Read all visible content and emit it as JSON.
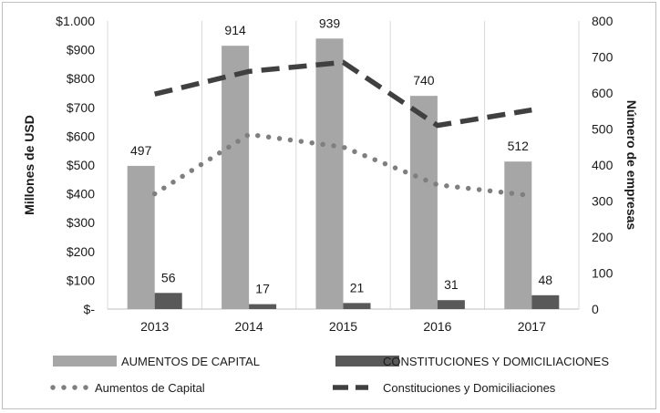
{
  "chart_data": {
    "type": "bar",
    "categories": [
      "2013",
      "2014",
      "2015",
      "2016",
      "2017"
    ],
    "ylabel": "Millones de USD",
    "y2label": "Número de empresas",
    "ylim": [
      0,
      1000
    ],
    "y2lim": [
      0,
      800
    ],
    "yticks": [
      "$-",
      "$100",
      "$200",
      "$300",
      "$400",
      "$500",
      "$600",
      "$700",
      "$800",
      "$900",
      "$1.000"
    ],
    "y2ticks": [
      "0",
      "100",
      "200",
      "300",
      "400",
      "500",
      "600",
      "700",
      "800"
    ],
    "grid": "vertical",
    "legend_position": "bottom",
    "series": [
      {
        "name": "AUMENTOS DE CAPITAL",
        "kind": "bar",
        "axis": "left",
        "color": "#a6a6a6",
        "values": [
          497,
          914,
          939,
          740,
          512
        ],
        "labels": [
          "497",
          "914",
          "939",
          "740",
          "512"
        ]
      },
      {
        "name": "CONSTITUCIONES Y DOMICILIACIONES",
        "kind": "bar",
        "axis": "left",
        "color": "#595959",
        "values": [
          56,
          17,
          21,
          31,
          48
        ],
        "labels": [
          "56",
          "17",
          "21",
          "31",
          "48"
        ]
      },
      {
        "name": "Aumentos de Capital",
        "kind": "line",
        "style": "dotted",
        "axis": "right",
        "color": "#7f7f7f",
        "values": [
          320,
          485,
          450,
          345,
          315
        ]
      },
      {
        "name": "Constituciones y Domiciliaciones",
        "kind": "line",
        "style": "dashed",
        "axis": "right",
        "color": "#404040",
        "values": [
          597,
          660,
          685,
          510,
          553
        ]
      }
    ]
  }
}
